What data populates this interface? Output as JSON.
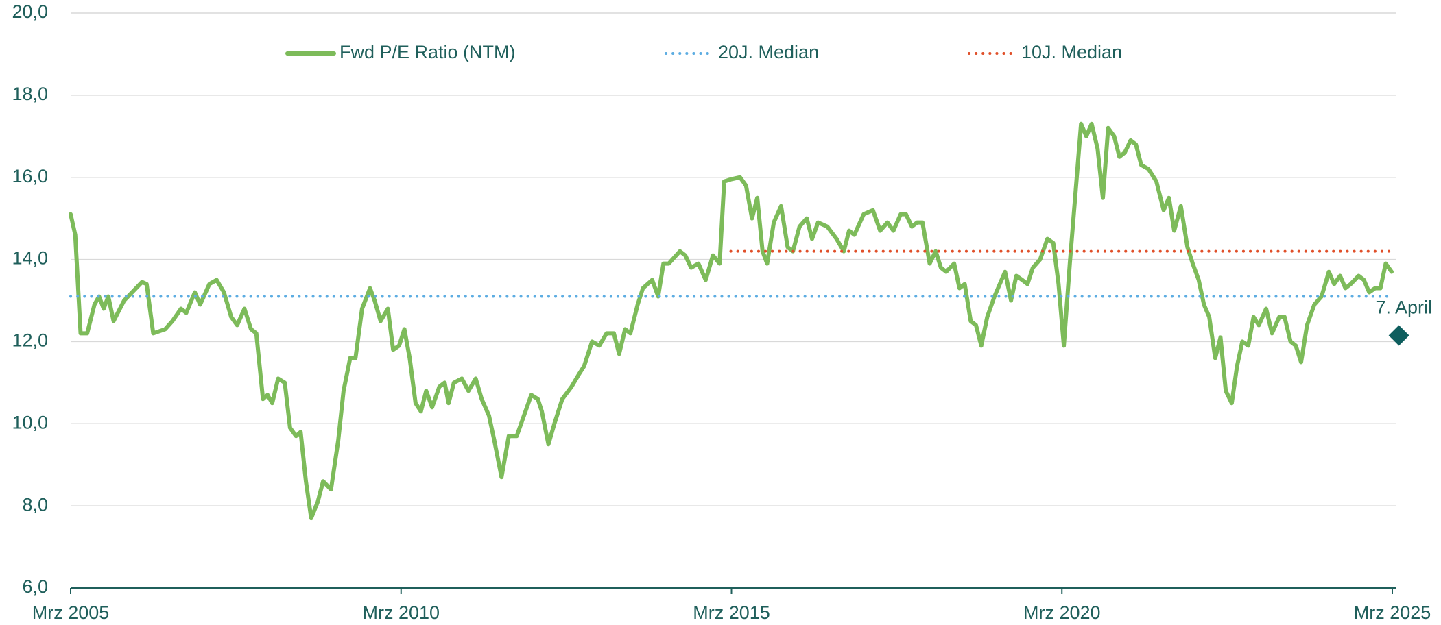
{
  "chart_data": {
    "type": "line",
    "ylim": [
      6,
      20
    ],
    "yticks": [
      {
        "value": 6,
        "label": "6,0"
      },
      {
        "value": 8,
        "label": "8,0"
      },
      {
        "value": 10,
        "label": "10,0"
      },
      {
        "value": 12,
        "label": "12,0"
      },
      {
        "value": 14,
        "label": "14,0"
      },
      {
        "value": 16,
        "label": "16,0"
      },
      {
        "value": 18,
        "label": "18,0"
      },
      {
        "value": 20,
        "label": "20,0"
      }
    ],
    "xlim": [
      2005.17,
      2025.17
    ],
    "xticks": [
      {
        "value": 2005.17,
        "label": "Mrz 2005"
      },
      {
        "value": 2010.17,
        "label": "Mrz 2010"
      },
      {
        "value": 2015.17,
        "label": "Mrz 2015"
      },
      {
        "value": 2020.17,
        "label": "Mrz 2020"
      },
      {
        "value": 2025.17,
        "label": "Mrz 2025"
      }
    ],
    "grid": true,
    "legend": "top",
    "series": [
      {
        "name": "Fwd P/E Ratio (NTM)",
        "color": "#7dbb5a",
        "style": "solid",
        "x": [
          2005.17,
          2005.24,
          2005.32,
          2005.42,
          2005.53,
          2005.6,
          2005.67,
          2005.74,
          2005.82,
          2005.98,
          2006.16,
          2006.25,
          2006.32,
          2006.42,
          2006.6,
          2006.71,
          2006.84,
          2006.92,
          2007.05,
          2007.13,
          2007.27,
          2007.38,
          2007.49,
          2007.6,
          2007.69,
          2007.8,
          2007.9,
          2007.98,
          2008.08,
          2008.15,
          2008.22,
          2008.31,
          2008.41,
          2008.49,
          2008.58,
          2008.65,
          2008.73,
          2008.81,
          2008.91,
          2008.99,
          2009.11,
          2009.22,
          2009.3,
          2009.4,
          2009.48,
          2009.58,
          2009.7,
          2009.77,
          2009.86,
          2009.97,
          2010.05,
          2010.14,
          2010.22,
          2010.3,
          2010.39,
          2010.47,
          2010.55,
          2010.64,
          2010.75,
          2010.83,
          2010.89,
          2010.97,
          2011.09,
          2011.19,
          2011.3,
          2011.39,
          2011.5,
          2011.58,
          2011.69,
          2011.8,
          2011.92,
          2012.03,
          2012.14,
          2012.24,
          2012.3,
          2012.4,
          2012.49,
          2012.61,
          2012.75,
          2012.86,
          2012.94,
          2013.06,
          2013.17,
          2013.28,
          2013.39,
          2013.47,
          2013.56,
          2013.64,
          2013.75,
          2013.83,
          2013.97,
          2014.06,
          2014.14,
          2014.22,
          2014.39,
          2014.47,
          2014.56,
          2014.67,
          2014.78,
          2014.89,
          2014.99,
          2015.06,
          2015.16,
          2015.3,
          2015.39,
          2015.48,
          2015.56,
          2015.64,
          2015.71,
          2015.81,
          2015.92,
          2016.02,
          2016.1,
          2016.2,
          2016.31,
          2016.39,
          2016.48,
          2016.62,
          2016.76,
          2016.87,
          2016.95,
          2017.03,
          2017.17,
          2017.31,
          2017.42,
          2017.53,
          2017.62,
          2017.73,
          2017.81,
          2017.9,
          2017.98,
          2018.06,
          2018.17,
          2018.26,
          2018.34,
          2018.42,
          2018.54,
          2018.62,
          2018.7,
          2018.79,
          2018.87,
          2018.95,
          2019.04,
          2019.15,
          2019.23,
          2019.31,
          2019.4,
          2019.48,
          2019.57,
          2019.65,
          2019.73,
          2019.84,
          2019.95,
          2020.04,
          2020.12,
          2020.2,
          2020.29,
          2020.37,
          2020.46,
          2020.54,
          2020.62,
          2020.71,
          2020.79,
          2020.87,
          2020.96,
          2021.04,
          2021.12,
          2021.21,
          2021.29,
          2021.37,
          2021.48,
          2021.6,
          2021.71,
          2021.79,
          2021.87,
          2021.97,
          2022.07,
          2022.15,
          2022.24,
          2022.32,
          2022.4,
          2022.49,
          2022.57,
          2022.65,
          2022.74,
          2022.82,
          2022.9,
          2022.99,
          2023.07,
          2023.15,
          2023.26,
          2023.35,
          2023.46,
          2023.54,
          2023.63,
          2023.71,
          2023.79,
          2023.88,
          2023.99,
          2024.1,
          2024.21,
          2024.29,
          2024.38,
          2024.46,
          2024.54,
          2024.66,
          2024.74,
          2024.82,
          2024.91,
          2024.99,
          2025.07,
          2025.16
        ],
        "values": [
          15.1,
          14.6,
          12.2,
          12.2,
          12.9,
          13.1,
          12.8,
          13.1,
          12.5,
          13.0,
          13.3,
          13.45,
          13.4,
          12.2,
          12.3,
          12.5,
          12.8,
          12.7,
          13.2,
          12.9,
          13.4,
          13.5,
          13.2,
          12.6,
          12.4,
          12.8,
          12.3,
          12.2,
          10.6,
          10.7,
          10.5,
          11.1,
          11.0,
          9.9,
          9.7,
          9.8,
          8.6,
          7.7,
          8.1,
          8.6,
          8.4,
          9.6,
          10.8,
          11.6,
          11.6,
          12.8,
          13.3,
          13.0,
          12.5,
          12.8,
          11.8,
          11.9,
          12.3,
          11.6,
          10.5,
          10.3,
          10.8,
          10.4,
          10.9,
          11.0,
          10.5,
          11.0,
          11.1,
          10.8,
          11.1,
          10.6,
          10.2,
          9.6,
          8.7,
          9.7,
          9.7,
          10.2,
          10.7,
          10.6,
          10.3,
          9.5,
          10.0,
          10.6,
          10.9,
          11.2,
          11.4,
          12.0,
          11.9,
          12.2,
          12.2,
          11.7,
          12.3,
          12.2,
          12.9,
          13.3,
          13.5,
          13.1,
          13.9,
          13.9,
          14.2,
          14.1,
          13.8,
          13.9,
          13.5,
          14.1,
          13.9,
          15.9,
          15.95,
          16.0,
          15.8,
          15.0,
          15.5,
          14.2,
          13.9,
          14.9,
          15.3,
          14.3,
          14.2,
          14.8,
          15.0,
          14.5,
          14.9,
          14.8,
          14.5,
          14.2,
          14.7,
          14.6,
          15.1,
          15.2,
          14.7,
          14.9,
          14.7,
          15.1,
          15.1,
          14.8,
          14.9,
          14.9,
          13.9,
          14.2,
          13.8,
          13.7,
          13.9,
          13.3,
          13.4,
          12.5,
          12.4,
          11.9,
          12.6,
          13.1,
          13.4,
          13.7,
          13.0,
          13.6,
          13.5,
          13.4,
          13.8,
          14.0,
          14.5,
          14.4,
          13.4,
          11.9,
          13.9,
          15.5,
          17.3,
          17.0,
          17.3,
          16.7,
          15.5,
          17.2,
          17.0,
          16.5,
          16.6,
          16.9,
          16.8,
          16.3,
          16.2,
          15.9,
          15.2,
          15.5,
          14.7,
          15.3,
          14.3,
          13.9,
          13.5,
          12.9,
          12.6,
          11.6,
          12.1,
          10.8,
          10.5,
          11.4,
          12.0,
          11.9,
          12.6,
          12.4,
          12.8,
          12.2,
          12.6,
          12.6,
          12.0,
          11.9,
          11.5,
          12.4,
          12.9,
          13.1,
          13.7,
          13.4,
          13.6,
          13.3,
          13.4,
          13.6,
          13.5,
          13.2,
          13.3,
          13.3,
          13.9,
          13.7
        ]
      },
      {
        "name": "20J. Median",
        "color": "#5dade2",
        "style": "dotted",
        "x": [
          2005.17,
          2025.16
        ],
        "values": [
          13.1,
          13.1
        ]
      },
      {
        "name": "10J. Median",
        "color": "#e0502a",
        "style": "dotted",
        "x": [
          2015.16,
          2025.16
        ],
        "values": [
          14.2,
          14.2
        ]
      }
    ],
    "annotation": {
      "text": "7. April",
      "x": 2025.27,
      "y": 12.15,
      "color": "#0e5e5e"
    }
  }
}
